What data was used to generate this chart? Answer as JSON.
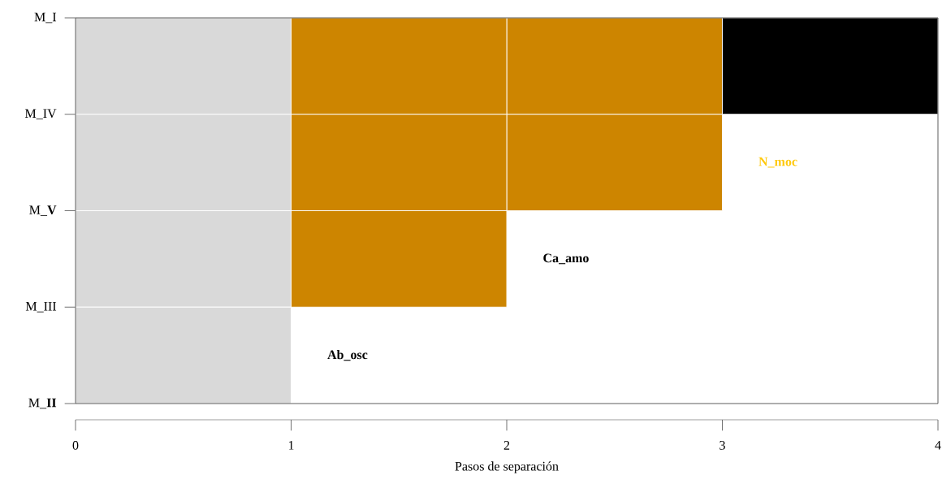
{
  "chart_data": {
    "type": "bar",
    "orientation": "horizontal",
    "stacked": true,
    "categories": [
      "M_I",
      "M_IV",
      "M_**V**",
      "M_III",
      "M_**II**"
    ],
    "series": [
      {
        "color": "#d9d9d9",
        "values": [
          1,
          1,
          1,
          1,
          0
        ]
      },
      {
        "color": "#cd8500",
        "values": [
          1,
          1,
          1,
          0,
          0
        ]
      },
      {
        "color": "#cd8500",
        "values": [
          1,
          1,
          0,
          0,
          0
        ]
      },
      {
        "color": "#000000",
        "values": [
          1,
          0,
          0,
          0,
          0
        ]
      }
    ],
    "xlim": [
      0,
      4
    ],
    "xticks": [
      0,
      1,
      2,
      3,
      4
    ],
    "xlabel": "Pasos de separación",
    "annotations": [
      "Ab_osc",
      "Ca_amo",
      "N_moc"
    ]
  }
}
